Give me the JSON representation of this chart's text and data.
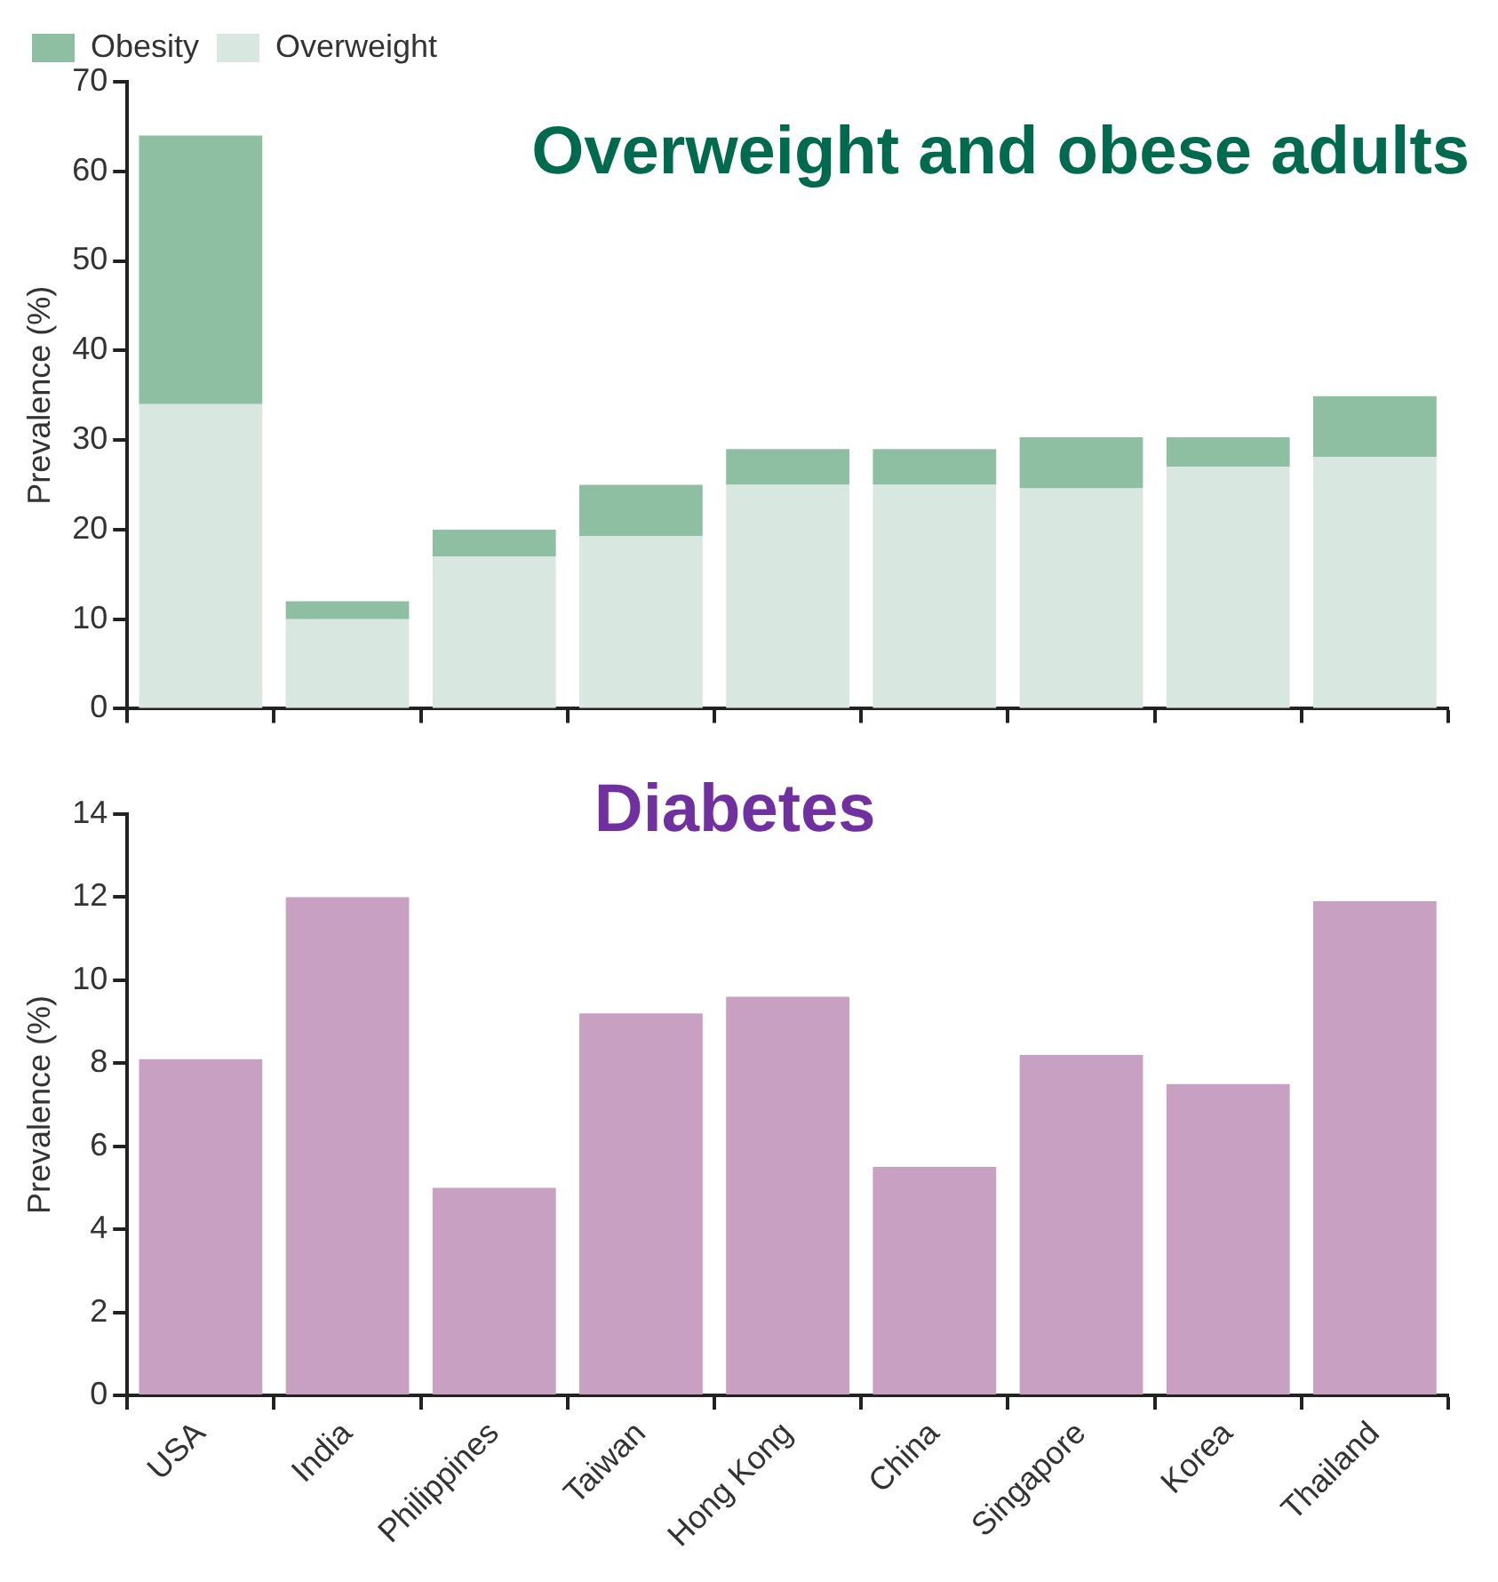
{
  "chart_data": [
    {
      "type": "bar",
      "title": "Overweight and obese adults",
      "ylabel": "Prevalence (%)",
      "categories": [
        null,
        null,
        null,
        null,
        null,
        null,
        null,
        null,
        null
      ],
      "stacked": true,
      "series": [
        {
          "name": "Overweight",
          "color": "#d8e8e0",
          "values": [
            34,
            10,
            17,
            19.3,
            25,
            25,
            24.6,
            27,
            28.1
          ]
        },
        {
          "name": "Obesity",
          "color": "#8fbfa3",
          "values": [
            30,
            2,
            3,
            5.7,
            4,
            4,
            5.7,
            3.3,
            6.8
          ]
        }
      ],
      "ylim": [
        0,
        70
      ],
      "yticks": [
        0,
        10,
        20,
        30,
        40,
        50,
        60,
        70
      ],
      "legend": "top left",
      "grid": false
    },
    {
      "type": "bar",
      "title": "Diabetes",
      "ylabel": "Prevalence (%)",
      "categories": [
        "USA",
        "India",
        "Philippines",
        "Taiwan",
        "Hong Kong",
        "China",
        "Singapore",
        "Korea",
        "Thailand"
      ],
      "series": [
        {
          "color": "#c8a0c2",
          "values": [
            8.1,
            12,
            5,
            9.2,
            9.6,
            5.5,
            8.2,
            7.5,
            11.9
          ]
        }
      ],
      "ylim": [
        0,
        14
      ],
      "yticks": [
        0,
        2,
        4,
        6,
        8,
        10,
        12,
        14
      ],
      "grid": false
    }
  ]
}
